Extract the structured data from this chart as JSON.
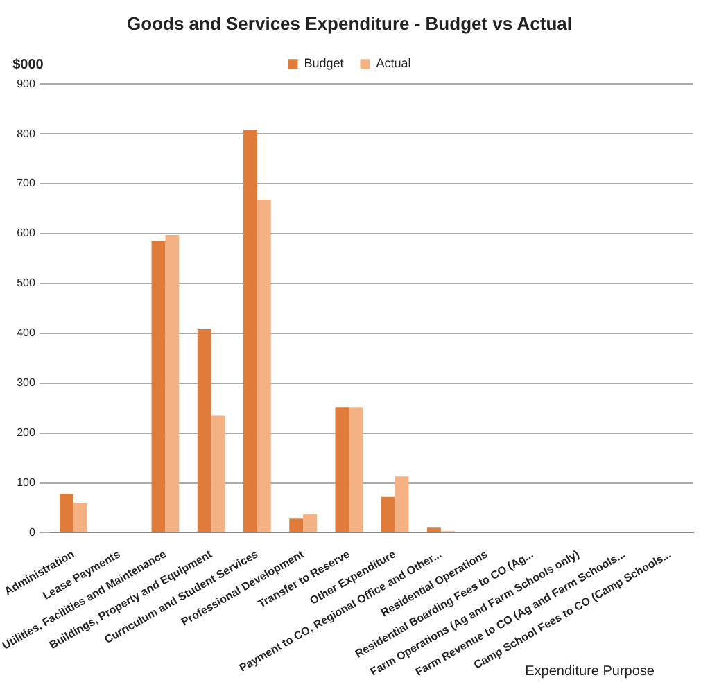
{
  "chart_data": {
    "type": "bar",
    "title": "Goods and Services Expenditure - Budget vs Actual",
    "ylabel": "$000",
    "xlabel": "Expenditure Purpose",
    "categories": [
      "Administration",
      "Lease Payments",
      "Utilities, Facilities and Maintenance",
      "Buildings, Property and Equipment",
      "Curriculum and Student Services",
      "Professional Development",
      "Transfer to Reserve",
      "Other Expenditure",
      "Payment to CO, Regional Office and Other...",
      "Residential Operations",
      "Residential Boarding Fees to CO (Ag...",
      "Farm Operations (Ag and Farm Schools only)",
      "Farm Revenue to CO (Ag and Farm Schools...",
      "Camp School Fees to CO (Camp Schools..."
    ],
    "series": [
      {
        "name": "Budget",
        "color": "#e07b39",
        "values": [
          78,
          0,
          585,
          408,
          808,
          28,
          252,
          72,
          10,
          0,
          0,
          0,
          0,
          0
        ]
      },
      {
        "name": "Actual",
        "color": "#f4b183",
        "values": [
          60,
          0,
          597,
          235,
          668,
          37,
          252,
          113,
          3,
          0,
          0,
          0,
          0,
          0
        ]
      }
    ],
    "ylim": [
      0,
      900
    ],
    "yticks": [
      0,
      100,
      200,
      300,
      400,
      500,
      600,
      700,
      800,
      900
    ],
    "grid": "y",
    "legend": "top"
  }
}
